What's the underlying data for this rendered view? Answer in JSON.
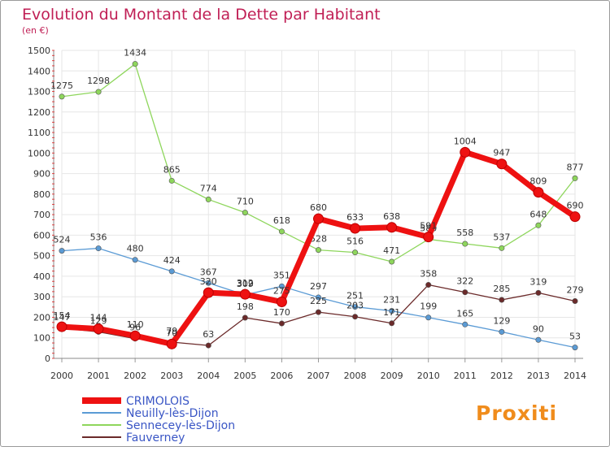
{
  "title": "Evolution du Montant de la Dette par Habitant",
  "unit_label": "(en €)",
  "brand": "Proxiti",
  "chart_data": {
    "type": "line",
    "title": "Evolution du Montant de la Dette par Habitant",
    "ylabel": "(en €)",
    "xlabel": "",
    "x": [
      2000,
      2001,
      2002,
      2003,
      2004,
      2005,
      2006,
      2007,
      2008,
      2009,
      2010,
      2011,
      2012,
      2013,
      2014
    ],
    "ylim": [
      0,
      1500
    ],
    "yticks": [
      0,
      100,
      200,
      300,
      400,
      500,
      600,
      700,
      800,
      900,
      1000,
      1100,
      1200,
      1300,
      1400,
      1500
    ],
    "grid": true,
    "legend_position": "bottom-left",
    "series": [
      {
        "name": "Neuilly-lès-Dijon",
        "color": "#5b9bd5",
        "values": [
          524,
          536,
          480,
          424,
          367,
          309,
          351,
          297,
          251,
          231,
          199,
          165,
          129,
          90,
          53
        ]
      },
      {
        "name": "Sennecey-lès-Dijon",
        "color": "#8ed65c",
        "values": [
          1275,
          1298,
          1434,
          865,
          774,
          710,
          618,
          528,
          516,
          471,
          580,
          558,
          537,
          648,
          877
        ]
      },
      {
        "name": "Fauverney",
        "color": "#6b2a2a",
        "values": [
          147,
          129,
          96,
          79,
          63,
          198,
          170,
          225,
          203,
          171,
          358,
          322,
          285,
          319,
          279
        ]
      },
      {
        "name": "CRIMOLOIS",
        "color": "#ee1111",
        "values": [
          154,
          144,
          110,
          70,
          320,
          312,
          275,
          680,
          633,
          638,
          591,
          1004,
          947,
          809,
          690
        ]
      }
    ]
  }
}
